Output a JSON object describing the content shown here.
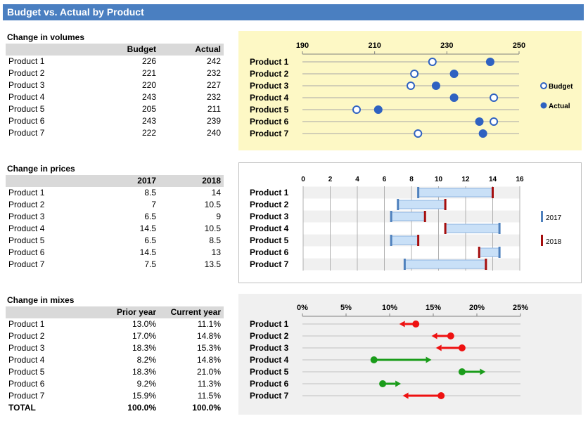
{
  "title": "Budget vs. Actual by Product",
  "volumes": {
    "title": "Change in volumes",
    "headers": [
      "Budget",
      "Actual"
    ],
    "rows": [
      {
        "name": "Product 1",
        "a": "226",
        "b": "242"
      },
      {
        "name": "Product 2",
        "a": "221",
        "b": "232"
      },
      {
        "name": "Product 3",
        "a": "220",
        "b": "227"
      },
      {
        "name": "Product 4",
        "a": "243",
        "b": "232"
      },
      {
        "name": "Product 5",
        "a": "205",
        "b": "211"
      },
      {
        "name": "Product 6",
        "a": "243",
        "b": "239"
      },
      {
        "name": "Product 7",
        "a": "222",
        "b": "240"
      }
    ]
  },
  "prices": {
    "title": "Change in prices",
    "headers": [
      "2017",
      "2018"
    ],
    "rows": [
      {
        "name": "Product 1",
        "a": "8.5",
        "b": "14"
      },
      {
        "name": "Product 2",
        "a": "7",
        "b": "10.5"
      },
      {
        "name": "Product 3",
        "a": "6.5",
        "b": "9"
      },
      {
        "name": "Product 4",
        "a": "14.5",
        "b": "10.5"
      },
      {
        "name": "Product 5",
        "a": "6.5",
        "b": "8.5"
      },
      {
        "name": "Product 6",
        "a": "14.5",
        "b": "13"
      },
      {
        "name": "Product 7",
        "a": "7.5",
        "b": "13.5"
      }
    ]
  },
  "mixes": {
    "title": "Change in mixes",
    "headers": [
      "Prior year",
      "Current year"
    ],
    "rows": [
      {
        "name": "Product 1",
        "a": "13.0%",
        "b": "11.1%"
      },
      {
        "name": "Product 2",
        "a": "17.0%",
        "b": "14.8%"
      },
      {
        "name": "Product 3",
        "a": "18.3%",
        "b": "15.3%"
      },
      {
        "name": "Product 4",
        "a": "8.2%",
        "b": "14.8%"
      },
      {
        "name": "Product 5",
        "a": "18.3%",
        "b": "21.0%"
      },
      {
        "name": "Product 6",
        "a": "9.2%",
        "b": "11.3%"
      },
      {
        "name": "Product 7",
        "a": "15.9%",
        "b": "11.5%"
      }
    ],
    "total": {
      "name": "TOTAL",
      "a": "100.0%",
      "b": "100.0%"
    }
  },
  "chart_data": [
    {
      "type": "scatter",
      "categories": [
        "Product 1",
        "Product 2",
        "Product 3",
        "Product 4",
        "Product 5",
        "Product 6",
        "Product 7"
      ],
      "series": [
        {
          "name": "Budget",
          "values": [
            226,
            221,
            220,
            243,
            205,
            243,
            222
          ]
        },
        {
          "name": "Actual",
          "values": [
            242,
            232,
            227,
            232,
            211,
            239,
            240
          ]
        }
      ],
      "xlim": [
        190,
        250
      ],
      "xticks": [
        "190",
        "210",
        "230",
        "250"
      ],
      "legend": "right",
      "colors": {
        "background": "#fdf8c5",
        "marker": "#2f62c1",
        "line": "#a6a6a6"
      }
    },
    {
      "type": "bar",
      "subtype": "floating-range",
      "categories": [
        "Product 1",
        "Product 2",
        "Product 3",
        "Product 4",
        "Product 5",
        "Product 6",
        "Product 7"
      ],
      "series": [
        {
          "name": "2017",
          "values": [
            8.5,
            7,
            6.5,
            14.5,
            6.5,
            14.5,
            7.5
          ]
        },
        {
          "name": "2018",
          "values": [
            14,
            10.5,
            9,
            10.5,
            8.5,
            13,
            13.5
          ]
        }
      ],
      "xlim": [
        0,
        16
      ],
      "xticks": [
        "0",
        "2",
        "4",
        "6",
        "8",
        "10",
        "12",
        "14",
        "16"
      ],
      "legend": "right",
      "colors": {
        "background": "#ffffff",
        "band": "#f0f0f0",
        "bar": "#c9e0f7",
        "bar_border": "#8db4e2",
        "y2017": "#4f81bd",
        "y2018": "#a50e0e"
      }
    },
    {
      "type": "arrow",
      "categories": [
        "Product 1",
        "Product 2",
        "Product 3",
        "Product 4",
        "Product 5",
        "Product 6",
        "Product 7"
      ],
      "series": [
        {
          "name": "Prior year",
          "values": [
            13.0,
            17.0,
            18.3,
            8.2,
            18.3,
            9.2,
            15.9
          ]
        },
        {
          "name": "Current year",
          "values": [
            11.1,
            14.8,
            15.3,
            14.8,
            21.0,
            11.3,
            11.5
          ]
        }
      ],
      "xlim": [
        0,
        25
      ],
      "xticks": [
        "0%",
        "5%",
        "10%",
        "15%",
        "20%",
        "25%"
      ],
      "colors": {
        "background": "#f0f0f0",
        "up": "#1a9c1a",
        "down": "#ee1111"
      }
    }
  ]
}
